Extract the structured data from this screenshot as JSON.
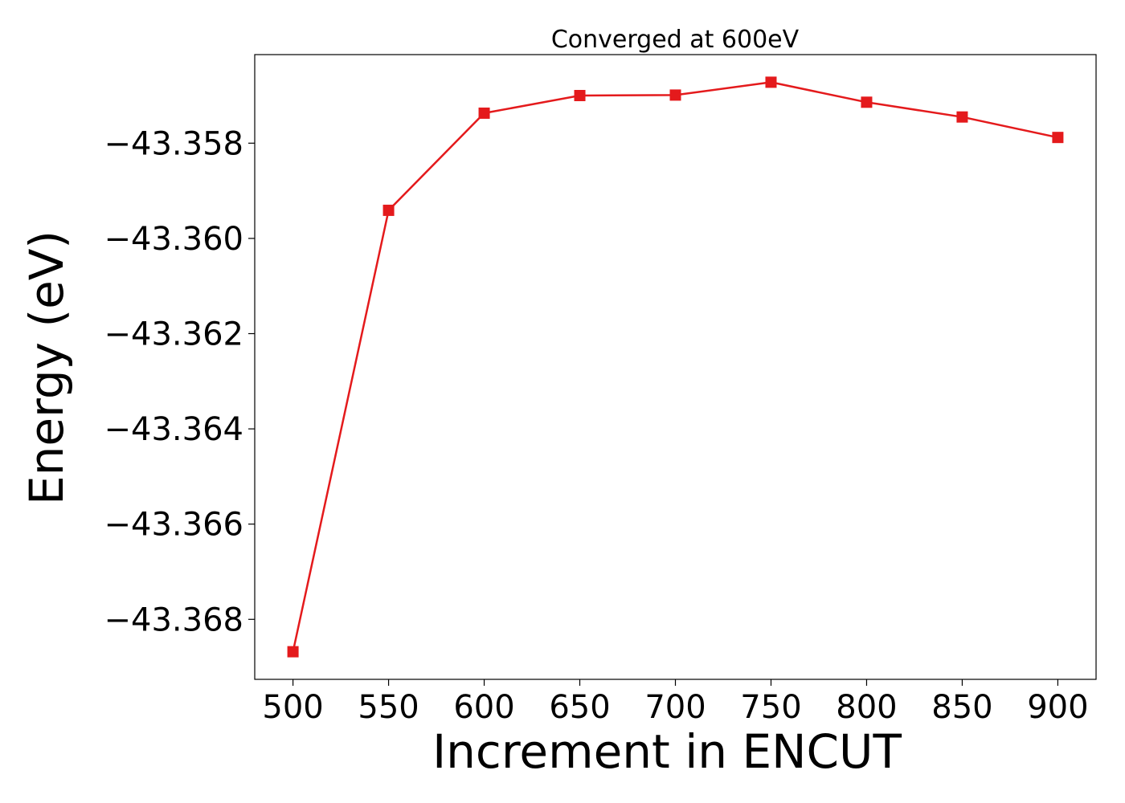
{
  "colors": {
    "series": "#e41a1c",
    "axes": "#000000",
    "background": "#ffffff"
  },
  "chart_data": {
    "type": "line",
    "title": "Converged at 600eV",
    "xlabel": "Increment in ENCUT",
    "ylabel": "Energy (eV)",
    "x": [
      500,
      550,
      600,
      650,
      700,
      750,
      800,
      850,
      900
    ],
    "series": [
      {
        "marker": "square",
        "values": [
          -43.36868,
          -43.35941,
          -43.35737,
          -43.357,
          -43.35699,
          -43.35672,
          -43.35714,
          -43.35745,
          -43.35788
        ]
      }
    ],
    "xticks": [
      500,
      550,
      600,
      650,
      700,
      750,
      800,
      850,
      900
    ],
    "xtick_labels": [
      "500",
      "550",
      "600",
      "650",
      "700",
      "750",
      "800",
      "850",
      "900"
    ],
    "yticks": [
      -43.358,
      -43.36,
      -43.362,
      -43.364,
      -43.366,
      -43.368
    ],
    "ytick_labels": [
      "−43.358",
      "−43.360",
      "−43.362",
      "−43.364",
      "−43.366",
      "−43.368"
    ],
    "xlim": [
      480,
      920
    ],
    "ylim": [
      -43.36926,
      -43.35614
    ],
    "grid": false,
    "legend": "none"
  }
}
